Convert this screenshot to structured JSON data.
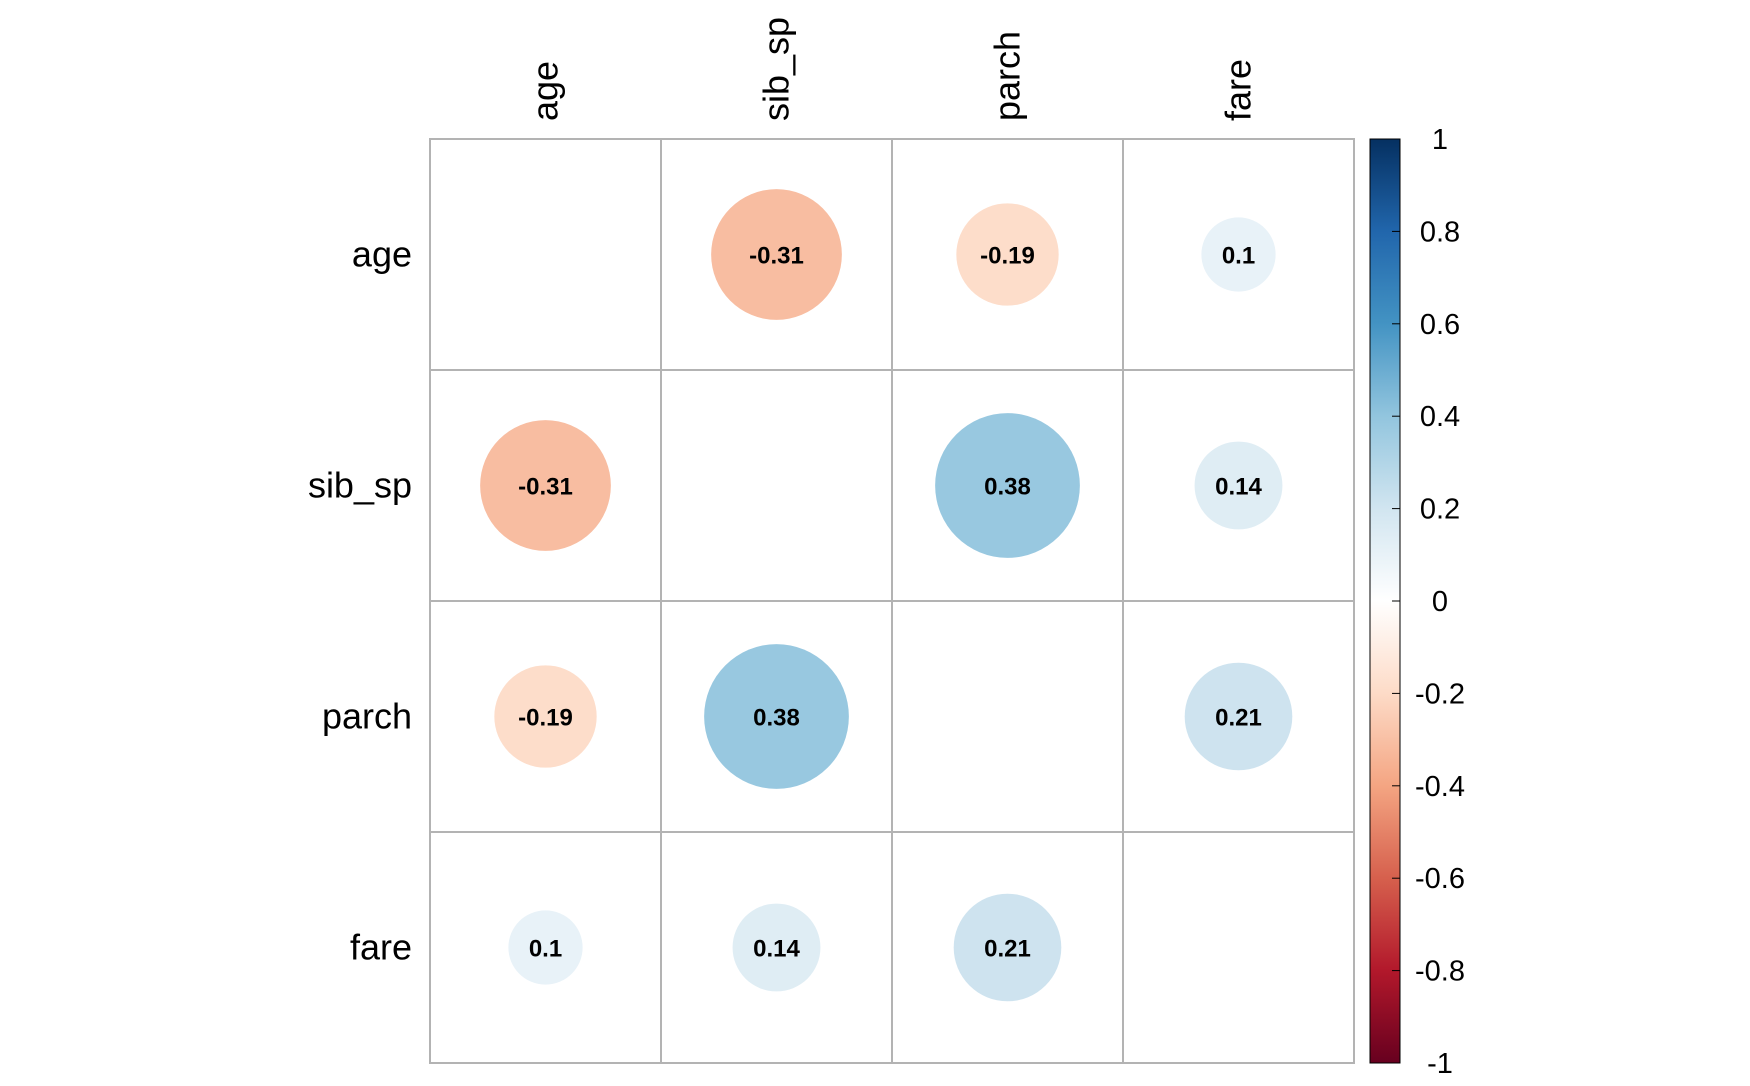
{
  "chart_data": {
    "type": "heatmap",
    "subtype": "correlation-matrix-circles",
    "variables": [
      "age",
      "sib_sp",
      "parch",
      "fare"
    ],
    "matrix": [
      [
        null,
        -0.31,
        -0.19,
        0.1
      ],
      [
        -0.31,
        null,
        0.38,
        0.14
      ],
      [
        -0.19,
        0.38,
        null,
        0.21
      ],
      [
        0.1,
        0.14,
        0.21,
        null
      ]
    ],
    "value_labels": [
      [
        "",
        "-0.31",
        "-0.19",
        "0.1"
      ],
      [
        "-0.31",
        "",
        "0.38",
        "0.14"
      ],
      [
        "-0.19",
        "0.38",
        "",
        "0.21"
      ],
      [
        "0.1",
        "0.14",
        "0.21",
        ""
      ]
    ],
    "legend": {
      "range": [
        -1,
        1
      ],
      "ticks": [
        1,
        0.8,
        0.6,
        0.4,
        0.2,
        0,
        -0.2,
        -0.4,
        -0.6,
        -0.8,
        -1
      ],
      "tick_labels": [
        "1",
        "0.8",
        "0.6",
        "0.4",
        "0.2",
        "0",
        "-0.2",
        "-0.4",
        "-0.6",
        "-0.8",
        "-1"
      ],
      "placement": "right",
      "colors": [
        "#67001F",
        "#B2182B",
        "#D6604D",
        "#F4A582",
        "#FDDBC7",
        "#FFFFFF",
        "#D1E5F0",
        "#92C5DE",
        "#4393C3",
        "#2166AC",
        "#053061"
      ]
    },
    "grid": true,
    "title": "",
    "xlabel": "",
    "ylabel": ""
  }
}
